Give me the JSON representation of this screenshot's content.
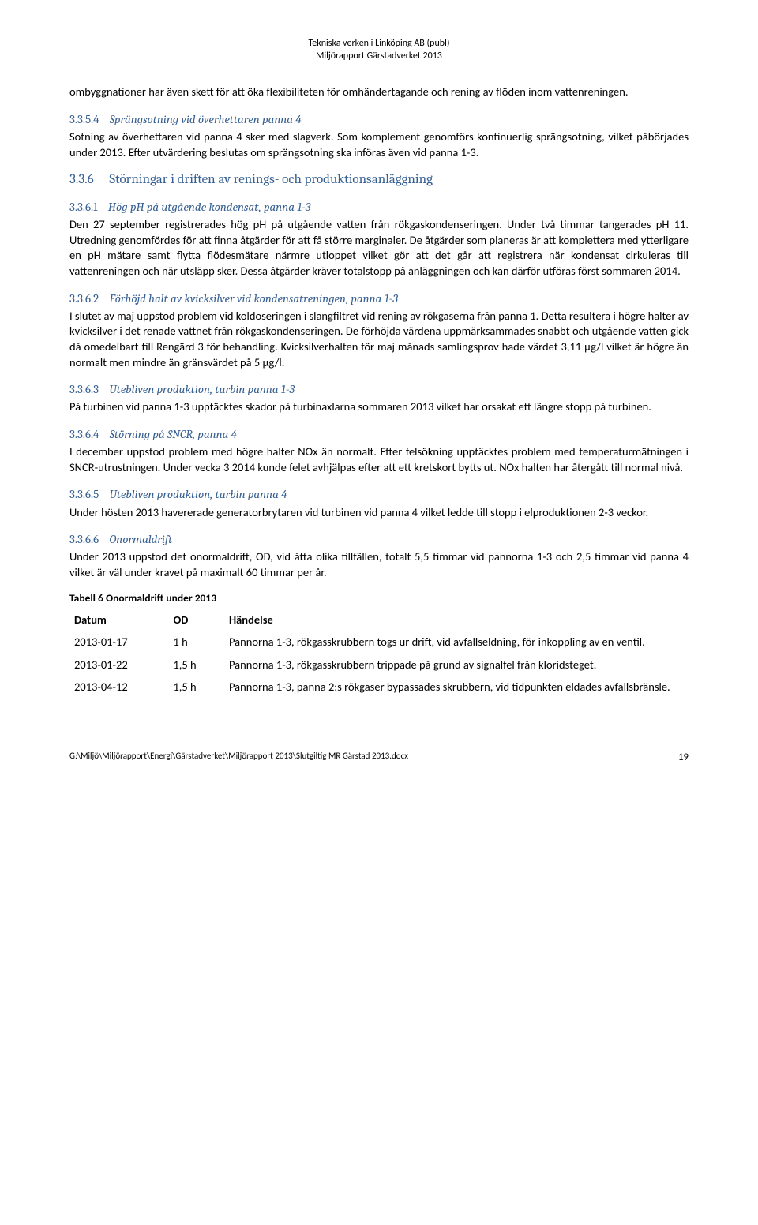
{
  "header": {
    "line1": "Tekniska verken i Linköping AB (publ)",
    "line2": "Miljörapport Gärstadverket 2013"
  },
  "p_intro": "ombyggnationer har även skett för att öka flexibiliteten för omhändertagande och rening av flöden inom vattenreningen.",
  "s_3354": {
    "num": "3.3.5.4",
    "title": "Sprängsotning vid överhettaren panna 4",
    "body": "Sotning av överhettaren vid panna 4 sker med slagverk. Som komplement genomförs kontinuerlig sprängsotning, vilket påbörjades under 2013. Efter utvärdering beslutas om sprängsotning ska införas även vid panna 1-3."
  },
  "s_336": {
    "num": "3.3.6",
    "title": "Störningar i driften av renings- och produktionsanläggning"
  },
  "s_3361": {
    "num": "3.3.6.1",
    "title": "Hög pH på utgående kondensat, panna 1-3",
    "body": "Den 27 september registrerades hög pH på utgående vatten från rökgaskondenseringen. Under två timmar tangerades pH 11. Utredning genomfördes för att finna åtgärder för att få större marginaler. De åtgärder som planeras är att komplettera med ytterligare en pH mätare samt flytta flödesmätare närmre utloppet vilket gör att det går att registrera när kondensat cirkuleras till vattenreningen och när utsläpp sker. Dessa åtgärder kräver totalstopp på anläggningen och kan därför utföras först sommaren 2014."
  },
  "s_3362": {
    "num": "3.3.6.2",
    "title": "Förhöjd halt av kvicksilver vid kondensatreningen, panna 1-3",
    "body": "I slutet av maj uppstod problem vid koldoseringen i slangfiltret vid rening av rökgaserna från panna 1. Detta resultera i högre halter av kvicksilver i det renade vattnet från rökgaskondenseringen. De förhöjda värdena uppmärksammades snabbt och utgående vatten gick då omedelbart till Rengärd 3 för behandling. Kvicksilverhalten för maj månads samlingsprov hade värdet 3,11 µg/l vilket är högre än normalt men mindre än gränsvärdet på 5 µg/l."
  },
  "s_3363": {
    "num": "3.3.6.3",
    "title": "Utebliven produktion, turbin panna 1-3",
    "body": "På turbinen vid panna 1-3 upptäcktes skador på turbinaxlarna sommaren 2013 vilket har orsakat ett längre stopp på turbinen."
  },
  "s_3364": {
    "num": "3.3.6.4",
    "title": "Störning på SNCR, panna 4",
    "body": "I december uppstod problem med högre halter NOx än normalt. Efter felsökning upptäcktes problem med temperaturmätningen i SNCR-utrustningen. Under vecka 3 2014 kunde felet avhjälpas efter att ett kretskort bytts ut. NOx halten har återgått till normal nivå."
  },
  "s_3365": {
    "num": "3.3.6.5",
    "title": "Utebliven produktion, turbin panna 4",
    "body": "Under hösten 2013 havererade generatorbrytaren vid turbinen vid panna 4 vilket ledde till stopp i elproduktionen 2-3 veckor."
  },
  "s_3366": {
    "num": "3.3.6.6",
    "title": "Onormaldrift",
    "body": "Under 2013 uppstod det onormaldrift, OD, vid åtta olika tillfällen, totalt 5,5 timmar vid pannorna 1-3 och 2,5 timmar vid panna 4 vilket är väl under kravet på maximalt 60 timmar per år."
  },
  "table": {
    "caption": "Tabell 6 Onormaldrift under 2013",
    "columns": [
      "Datum",
      "OD",
      "Händelse"
    ],
    "col_widths_pct": [
      16,
      9,
      75
    ],
    "border_color": "#000000",
    "rows": [
      [
        "2013-01-17",
        "1 h",
        "Pannorna 1-3, rökgasskrubbern togs ur drift, vid avfallseldning, för inkoppling av en ventil."
      ],
      [
        "2013-01-22",
        "1,5 h",
        "Pannorna 1-3, rökgasskrubbern trippade på grund av signalfel från kloridsteget."
      ],
      [
        "2013-04-12",
        "1,5 h",
        "Pannorna 1-3, panna 2:s rökgaser bypassades skrubbern, vid tidpunkten eldades avfallsbränsle."
      ]
    ]
  },
  "footer": {
    "path": "G:\\Miljö\\Miljörapport\\Energi\\Gärstadverket\\Miljörapport 2013\\Slutgiltig MR Gärstad 2013.docx",
    "page": "19"
  },
  "style": {
    "heading_color": "#365f91",
    "body_color": "#000000",
    "background": "#ffffff",
    "body_fontsize_pt": 11,
    "heading3_fontsize_pt": 13,
    "heading4_fontsize_pt": 12
  }
}
